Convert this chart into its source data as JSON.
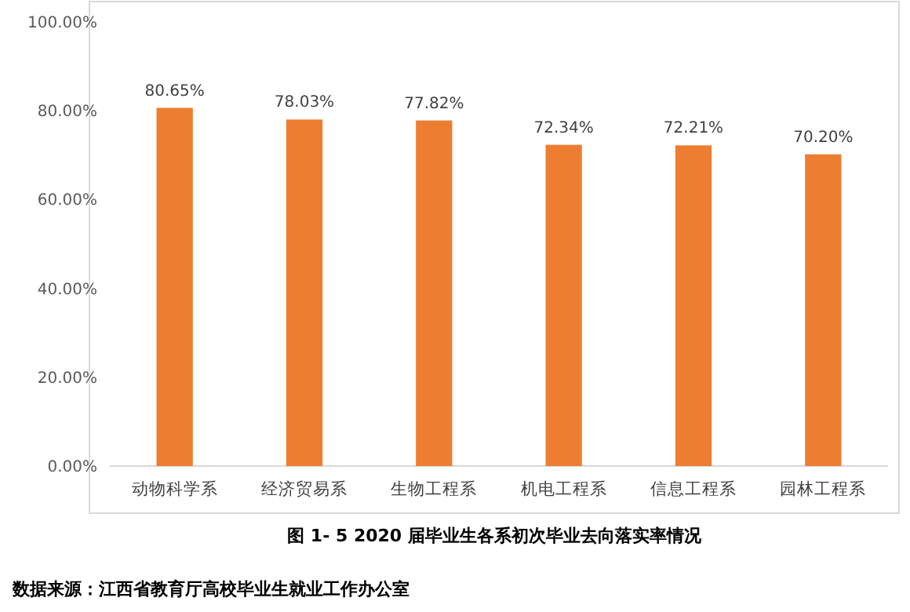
{
  "chart_data": {
    "type": "bar",
    "title": "图 1- 5   2020 届毕业生各系初次毕业去向落实率情况",
    "categories": [
      "动物科学系",
      "经济贸易系",
      "生物工程系",
      "机电工程系",
      "信息工程系",
      "园林工程系"
    ],
    "values": [
      80.65,
      78.03,
      77.82,
      72.34,
      72.21,
      70.2
    ],
    "value_labels": [
      "80.65%",
      "78.03%",
      "77.82%",
      "72.34%",
      "72.21%",
      "70.20%"
    ],
    "color": "#ed7d31",
    "ylim": [
      0,
      100
    ],
    "yticks": [
      {
        "value": 0,
        "label": "0.00%"
      },
      {
        "value": 20,
        "label": "20.00%"
      },
      {
        "value": 40,
        "label": "40.00%"
      },
      {
        "value": 60,
        "label": "60.00%"
      },
      {
        "value": 80,
        "label": "80.00%"
      },
      {
        "value": 100,
        "label": "100.00%"
      }
    ],
    "grid": false,
    "annotations": [
      "数据来源：江西省教育厅高校毕业生就业工作办公室"
    ]
  }
}
